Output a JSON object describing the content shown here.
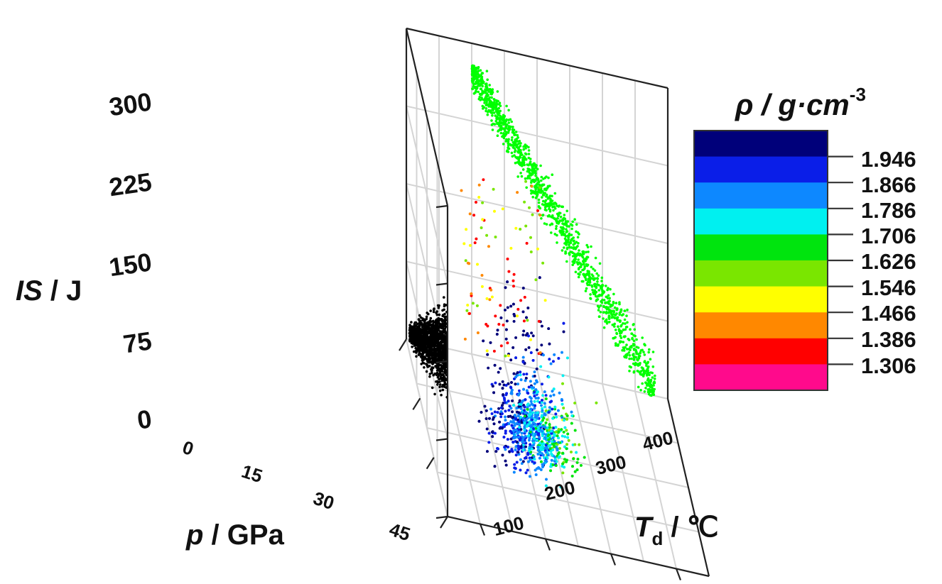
{
  "chart_data": {
    "type": "scatter",
    "title": "",
    "z_axis": {
      "label_italic": "IS",
      "label_rest": " / J",
      "range": [
        0,
        300
      ],
      "ticks": [
        "0",
        "75",
        "150",
        "225",
        "300"
      ]
    },
    "x_axis": {
      "label_italic": "p",
      "label_rest": " / GPa",
      "range": [
        0,
        45
      ],
      "ticks": [
        "0",
        "15",
        "30",
        "45"
      ]
    },
    "y_axis": {
      "label_italic": "T",
      "label_sub": "d",
      "label_rest": " / ℃",
      "range": [
        50,
        450
      ],
      "ticks": [
        "100",
        "200",
        "300",
        "400"
      ]
    },
    "colorbar": {
      "label_prefix": "ρ / g·cm",
      "label_sup": "-3",
      "ticks": [
        "1.946",
        "1.866",
        "1.786",
        "1.706",
        "1.626",
        "1.546",
        "1.466",
        "1.386",
        "1.306"
      ],
      "colors": [
        "#00007a",
        "#0a1ee8",
        "#0d88ff",
        "#00f0f0",
        "#00e40e",
        "#7ae600",
        "#ffff00",
        "#ff8800",
        "#ff0000",
        "#ff0a8c"
      ]
    },
    "projections": [
      {
        "name": "IS vs p",
        "color": "#000000"
      },
      {
        "name": "IS vs Td",
        "color": "#00ff00"
      }
    ],
    "grid": true
  }
}
